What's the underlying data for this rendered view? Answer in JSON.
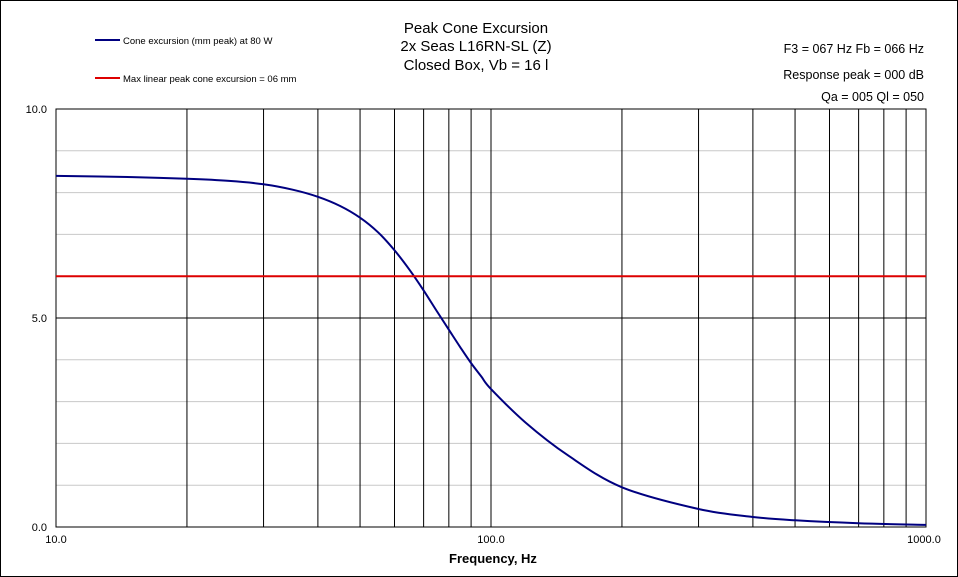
{
  "chart_data": {
    "type": "line",
    "title_lines": [
      "Peak Cone Excursion",
      "2x Seas L16RN-SL (Z)",
      "Closed Box, Vb = 16 l"
    ],
    "xlabel": "Frequency, Hz",
    "ylabel": "",
    "xscale": "log",
    "xlim": [
      10,
      1000
    ],
    "ylim": [
      0,
      10
    ],
    "x_tick_labels": [
      "10.0",
      "100.0",
      "1000.0"
    ],
    "y_tick_labels": [
      "10.0",
      "5.0",
      "0.0"
    ],
    "y_ticks": [
      10,
      5,
      0
    ],
    "x_ticks": [
      10,
      100,
      1000
    ],
    "grid": true,
    "legend_position": "top-left",
    "info_lines": [
      "F3 = 067  Hz  Fb = 066  Hz",
      "Response peak = 000  dB",
      "Qa = 005   Ql = 050"
    ],
    "series": [
      {
        "name": "Cone excursion (mm peak) at 80 W",
        "color": "#000080",
        "x": [
          10,
          15,
          20,
          25,
          30,
          35,
          40,
          45,
          50,
          55,
          60,
          65,
          70,
          75,
          80,
          85,
          90,
          95,
          100,
          120,
          150,
          200,
          300,
          400,
          500,
          700,
          1000
        ],
        "y": [
          8.4,
          8.37,
          8.33,
          8.28,
          8.2,
          8.07,
          7.9,
          7.68,
          7.4,
          7.05,
          6.62,
          6.15,
          5.66,
          5.17,
          4.72,
          4.3,
          3.92,
          3.6,
          3.3,
          2.5,
          1.72,
          0.95,
          0.43,
          0.24,
          0.16,
          0.09,
          0.05
        ]
      },
      {
        "name": "Max linear peak cone excursion = 06 mm",
        "color": "#dd0000",
        "x": [
          10,
          1000
        ],
        "y": [
          6,
          6
        ]
      }
    ]
  }
}
